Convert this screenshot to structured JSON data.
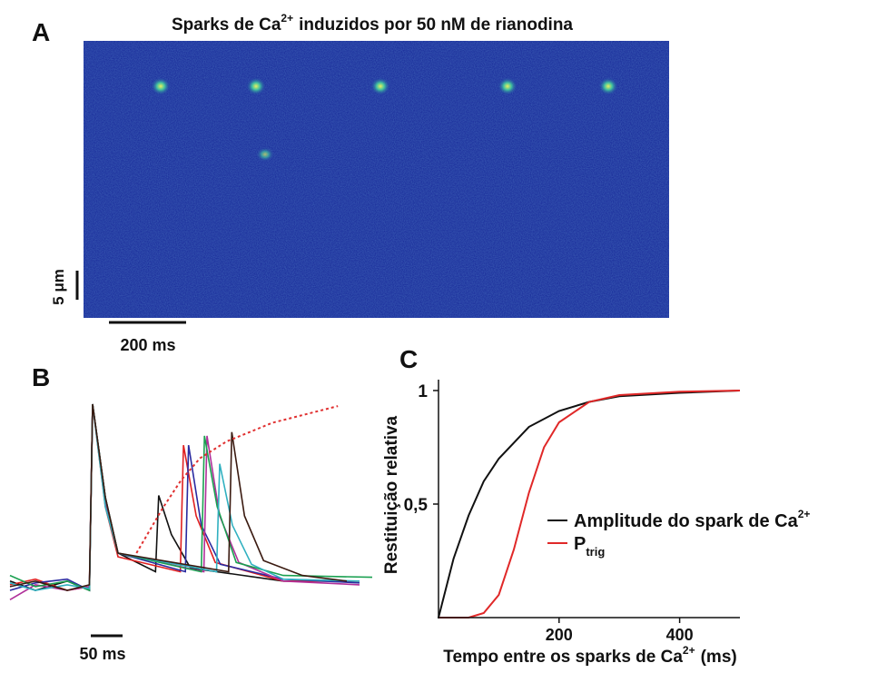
{
  "chart_data": [
    {
      "type": "image",
      "label": "A",
      "title": "Sparks de Ca",
      "title_sup": "2+",
      "title_rest": "induzidos por 50 nM de rianodina",
      "scalebar_y_label": "5 μm",
      "scalebar_x_label": "200 ms"
    },
    {
      "type": "line",
      "label": "B",
      "scalebar_x_label": "50 ms",
      "series": [
        {
          "color": "#111111",
          "x": [
            -130,
            -90,
            -40,
            -5,
            0,
            20,
            40,
            99,
            104,
            124,
            154,
            300,
            420
          ],
          "values": [
            0.05,
            0.0,
            0.05,
            0.0,
            1.0,
            0.5,
            0.2,
            0.1,
            0.51,
            0.3,
            0.12,
            0.05,
            0.05
          ]
        },
        {
          "color": "#e02020",
          "x": [
            -130,
            -90,
            -40,
            -5,
            0,
            20,
            40,
            138,
            143,
            163,
            193,
            300,
            420
          ],
          "values": [
            0.03,
            0.06,
            0.0,
            0.02,
            1.0,
            0.45,
            0.18,
            0.1,
            0.78,
            0.4,
            0.15,
            0.05,
            0.05
          ]
        },
        {
          "color": "#2a2aa0",
          "x": [
            -130,
            -90,
            -40,
            -5,
            0,
            20,
            40,
            146,
            151,
            171,
            201,
            300,
            420
          ],
          "values": [
            0.0,
            0.04,
            0.06,
            0.0,
            1.0,
            0.5,
            0.2,
            0.1,
            0.78,
            0.35,
            0.14,
            0.06,
            0.04
          ]
        },
        {
          "color": "#b0309a",
          "x": [
            -130,
            -90,
            -40,
            -5,
            0,
            20,
            40,
            175,
            180,
            200,
            230,
            300,
            420
          ],
          "values": [
            -0.05,
            0.03,
            0.0,
            0.02,
            1.0,
            0.48,
            0.2,
            0.1,
            0.83,
            0.4,
            0.15,
            0.05,
            0.03
          ]
        },
        {
          "color": "#1aa050",
          "x": [
            -130,
            -90,
            -40,
            -5,
            0,
            20,
            40,
            171,
            176,
            196,
            226,
            300,
            440
          ],
          "values": [
            0.08,
            0.02,
            0.05,
            0.0,
            1.0,
            0.5,
            0.2,
            0.1,
            0.83,
            0.45,
            0.15,
            0.08,
            0.07
          ]
        },
        {
          "color": "#30b0c0",
          "x": [
            -130,
            -90,
            -40,
            -5,
            0,
            20,
            40,
            195,
            200,
            220,
            250,
            300,
            420
          ],
          "values": [
            0.04,
            0.0,
            0.03,
            0.01,
            1.0,
            0.45,
            0.2,
            0.1,
            0.68,
            0.35,
            0.14,
            0.06,
            0.05
          ]
        },
        {
          "color": "#3a1a10",
          "x": [
            -130,
            -90,
            -40,
            -5,
            0,
            20,
            40,
            214,
            219,
            239,
            269,
            330,
            400
          ],
          "values": [
            0.02,
            0.05,
            0.0,
            0.03,
            1.0,
            0.5,
            0.2,
            0.1,
            0.85,
            0.4,
            0.16,
            0.08,
            0.05
          ]
        },
        {
          "color": "#e03030",
          "dashed": true,
          "x": [
            69,
            110,
            139,
            169,
            211,
            283,
            386
          ],
          "values": [
            0.2,
            0.44,
            0.59,
            0.71,
            0.8,
            0.9,
            0.99
          ]
        }
      ]
    },
    {
      "type": "line",
      "label": "C",
      "xlabel": "Tempo entre os sparks de Ca",
      "xlabel_sup": "2+",
      "xlabel_rest": "(ms)",
      "ylabel": "Restituição relativa",
      "xlim": [
        0,
        500
      ],
      "ylim": [
        0,
        1
      ],
      "xticks": [
        200,
        400
      ],
      "yticks": [
        {
          "value": 0.5,
          "label": "0,5"
        },
        1
      ],
      "series": [
        {
          "name": "Amplitude do spark de Ca",
          "name_sup": "2+",
          "color": "#111111",
          "x": [
            0,
            25,
            50,
            75,
            100,
            150,
            200,
            250,
            300,
            400,
            500
          ],
          "values": [
            0,
            0.26,
            0.45,
            0.6,
            0.7,
            0.84,
            0.91,
            0.95,
            0.975,
            0.99,
            1
          ]
        },
        {
          "name": "P",
          "name_sub": "trig",
          "color": "#e02828",
          "x": [
            0,
            50,
            75,
            100,
            125,
            150,
            175,
            200,
            250,
            300,
            400,
            500
          ],
          "values": [
            0,
            0,
            0.02,
            0.1,
            0.3,
            0.55,
            0.75,
            0.86,
            0.95,
            0.98,
            0.995,
            1
          ]
        }
      ]
    }
  ]
}
